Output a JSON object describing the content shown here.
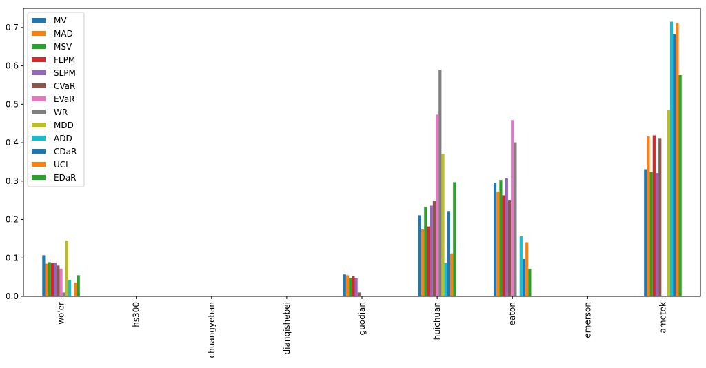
{
  "chart_data": {
    "type": "bar",
    "title": "",
    "xlabel": "",
    "ylabel": "",
    "ylim": [
      0,
      0.75
    ],
    "yticks": [
      0.0,
      0.1,
      0.2,
      0.3,
      0.4,
      0.5,
      0.6,
      0.7
    ],
    "grid": false,
    "legend_position": "top-left",
    "categories": [
      "wo'er",
      "hs300",
      "chuangyeban",
      "dianqishebei",
      "guodian",
      "huichuan",
      "eaton",
      "emerson",
      "ametek"
    ],
    "series": [
      {
        "name": "MV",
        "color": "#1f77b4",
        "values": [
          0.107,
          0,
          0,
          0,
          0.057,
          0.211,
          0.296,
          0,
          0.331
        ]
      },
      {
        "name": "MAD",
        "color": "#ff7f0e",
        "values": [
          0.085,
          0,
          0,
          0,
          0.055,
          0.174,
          0.273,
          0,
          0.416
        ]
      },
      {
        "name": "MSV",
        "color": "#2ca02c",
        "values": [
          0.089,
          0,
          0,
          0,
          0.048,
          0.233,
          0.303,
          0,
          0.324
        ]
      },
      {
        "name": "FLPM",
        "color": "#d62728",
        "values": [
          0.086,
          0,
          0,
          0,
          0.052,
          0.182,
          0.263,
          0,
          0.419
        ]
      },
      {
        "name": "SLPM",
        "color": "#9467bd",
        "values": [
          0.088,
          0,
          0,
          0,
          0.047,
          0.236,
          0.307,
          0,
          0.321
        ]
      },
      {
        "name": "CVaR",
        "color": "#8c564b",
        "values": [
          0.08,
          0,
          0,
          0,
          0.01,
          0.249,
          0.251,
          0,
          0.412
        ]
      },
      {
        "name": "EVaR",
        "color": "#e377c2",
        "values": [
          0.072,
          0,
          0,
          0,
          0,
          0.473,
          0.459,
          0,
          0
        ]
      },
      {
        "name": "WR",
        "color": "#7f7f7f",
        "values": [
          0.01,
          0,
          0,
          0,
          0,
          0.59,
          0.401,
          0,
          0
        ]
      },
      {
        "name": "MDD",
        "color": "#bcbd22",
        "values": [
          0.145,
          0,
          0,
          0,
          0,
          0.371,
          0,
          0,
          0.485
        ]
      },
      {
        "name": "ADD",
        "color": "#17becf",
        "values": [
          0.043,
          0,
          0,
          0,
          0,
          0.086,
          0.156,
          0,
          0.715
        ]
      },
      {
        "name": "CDaR",
        "color": "#1f77b4",
        "values": [
          0,
          0,
          0,
          0,
          0,
          0.222,
          0.097,
          0,
          0.682
        ]
      },
      {
        "name": "UCI",
        "color": "#ff7f0e",
        "values": [
          0.036,
          0,
          0,
          0,
          0,
          0.112,
          0.141,
          0,
          0.711
        ]
      },
      {
        "name": "EDaR",
        "color": "#2ca02c",
        "values": [
          0.055,
          0,
          0,
          0,
          0,
          0.297,
          0.072,
          0,
          0.576
        ]
      }
    ]
  }
}
